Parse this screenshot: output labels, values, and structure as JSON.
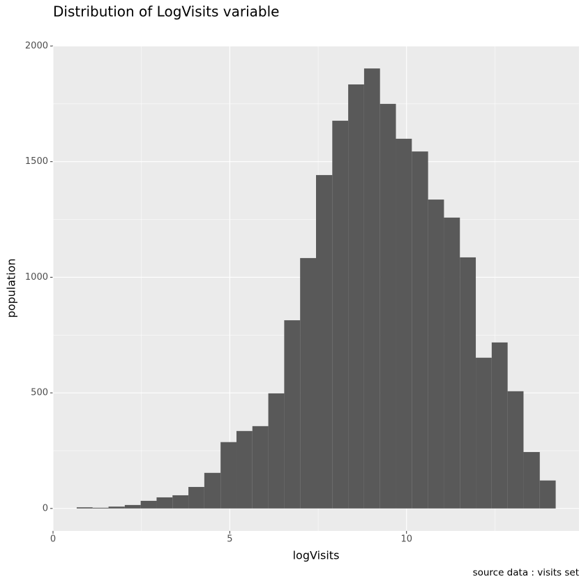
{
  "chart_data": {
    "type": "histogram",
    "title": "Distribution of LogVisits variable",
    "x_label": "logVisits",
    "y_label": "population",
    "caption": "source data : visits set",
    "bins": [
      0.67,
      1.12,
      1.57,
      2.03,
      2.48,
      2.93,
      3.38,
      3.83,
      4.28,
      4.74,
      5.19,
      5.64,
      6.09,
      6.54,
      6.99,
      7.44,
      7.9,
      8.35,
      8.8,
      9.25,
      9.7,
      10.15,
      10.61,
      11.06,
      11.51,
      11.96,
      12.41,
      12.86,
      13.31,
      13.77,
      14.22
    ],
    "values": [
      5,
      3,
      8,
      15,
      33,
      48,
      57,
      93,
      154,
      287,
      335,
      356,
      498,
      814,
      1083,
      1442,
      1677,
      1834,
      1903,
      1750,
      1599,
      1544,
      1336,
      1258,
      1086,
      652,
      718,
      507,
      244,
      121
    ],
    "color": "#595959",
    "xlim": [
      0,
      14.88
    ],
    "xticks": [
      0,
      5,
      10
    ],
    "ylim": [
      -97,
      2000
    ],
    "yticks": [
      0,
      500,
      1000,
      1500,
      2000
    ],
    "grid": true
  }
}
